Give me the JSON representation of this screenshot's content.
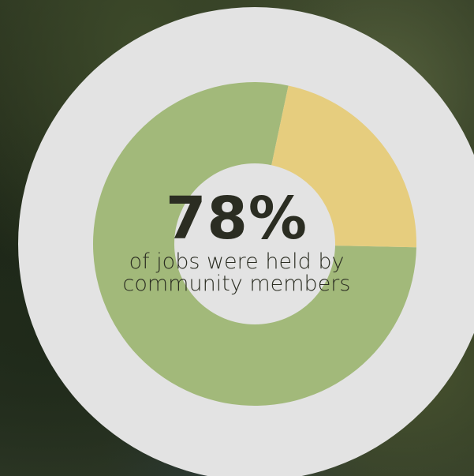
{
  "colors": {
    "outer_ring": "#e3e3e3",
    "community": "#a2b97a",
    "other": "#e6cd7e",
    "inner": "#e3e3e3",
    "text": "#2b2d22"
  },
  "center": {
    "value": "78%",
    "caption": "of jobs were held by community members"
  },
  "chart_data": {
    "type": "pie",
    "slices": [
      {
        "value": 78,
        "color": "#a2b97a"
      },
      {
        "value": 22,
        "color": "#e6cd7e"
      }
    ]
  }
}
